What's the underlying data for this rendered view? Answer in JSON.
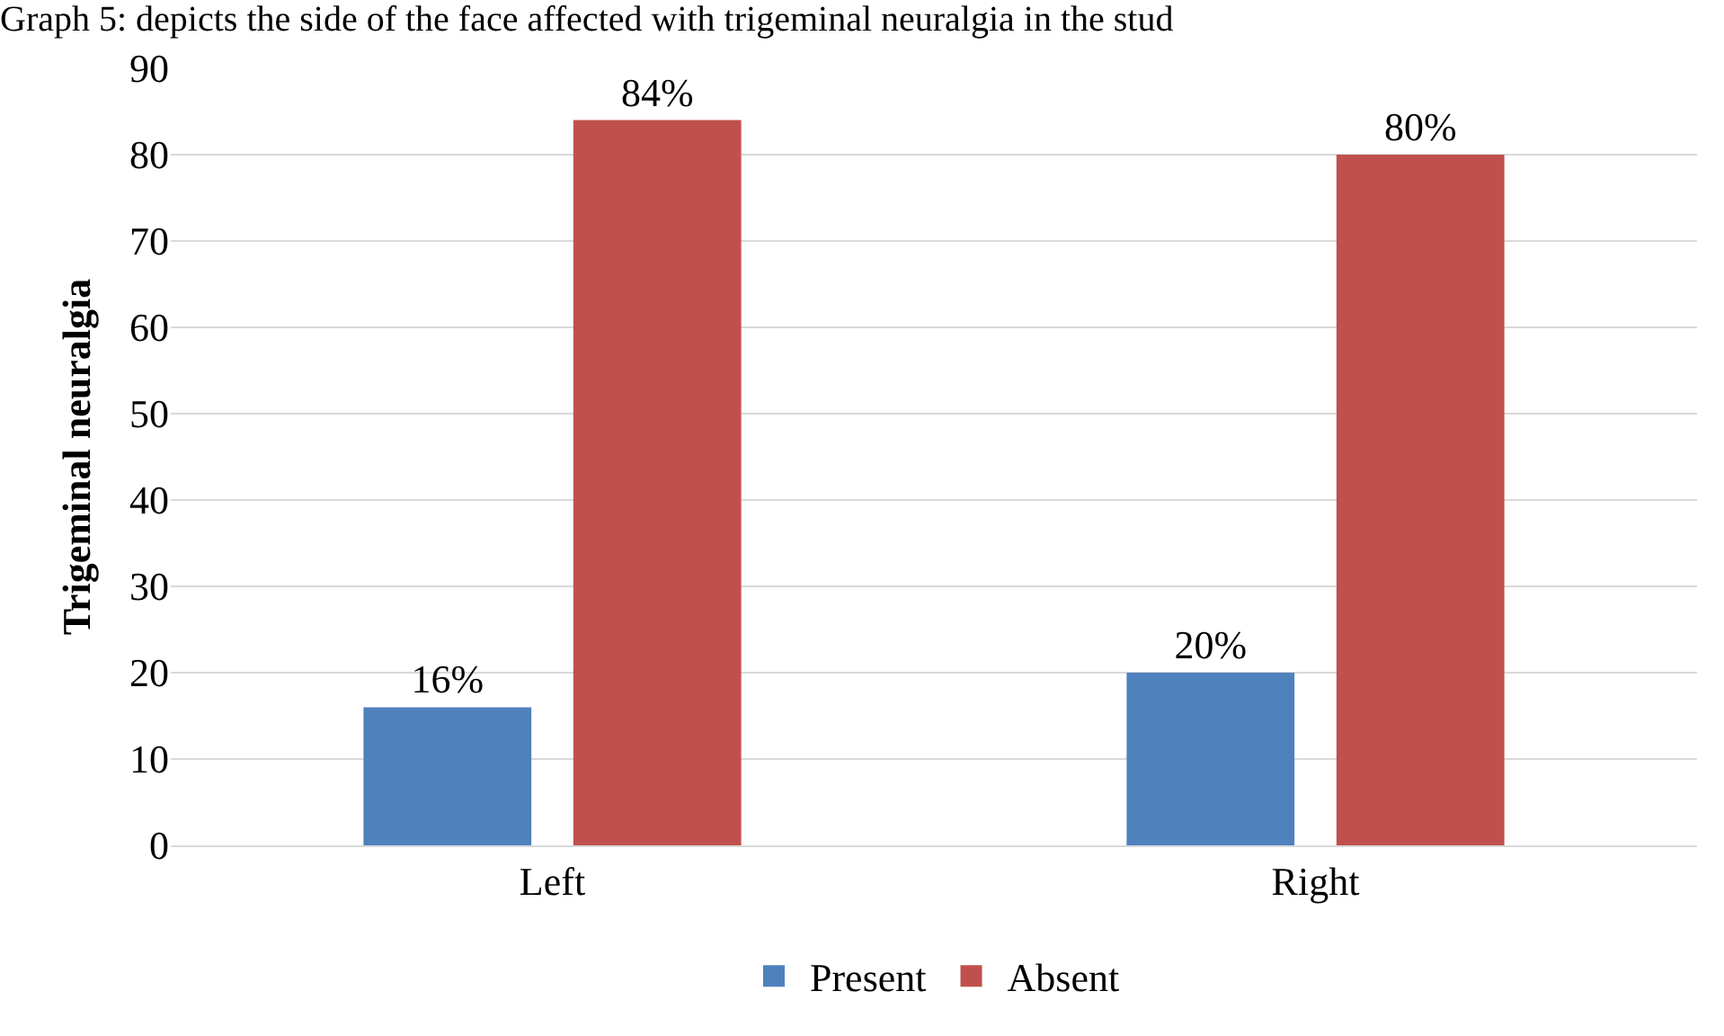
{
  "chart_data": {
    "type": "bar",
    "title": "Graph 5: depicts the side of the face affected with trigeminal neuralgia in the stud",
    "ylabel": "Trigeminal neuralgia",
    "categories": [
      "Left",
      "Right"
    ],
    "series": [
      {
        "name": "Present",
        "color": "#4f81bd",
        "values": [
          16,
          20
        ],
        "value_labels": [
          "16%",
          "20%"
        ]
      },
      {
        "name": "Absent",
        "color": "#c0504d",
        "values": [
          84,
          80
        ],
        "value_labels": [
          "84%",
          "80%"
        ]
      }
    ],
    "ylim": [
      0,
      90
    ],
    "yticks": [
      0,
      10,
      20,
      30,
      40,
      50,
      60,
      70,
      80,
      90
    ],
    "grid": "y",
    "legend": "bottom"
  }
}
